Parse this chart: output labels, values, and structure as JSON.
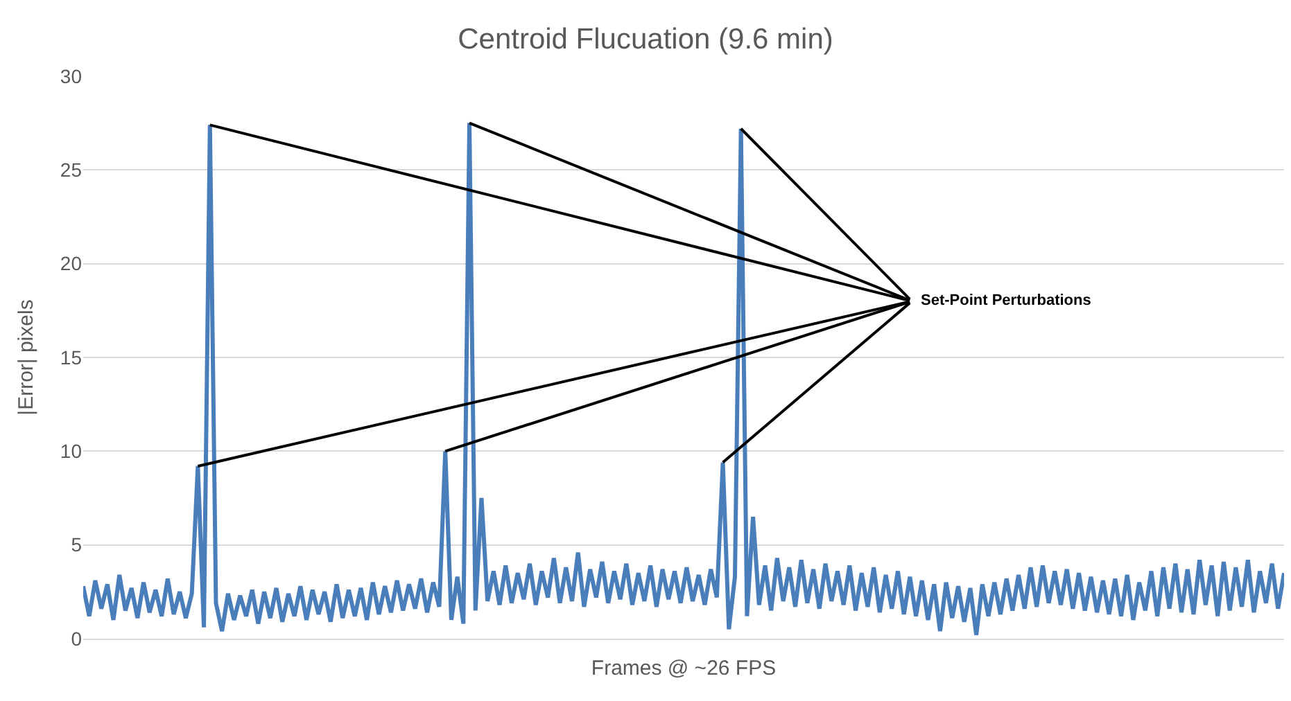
{
  "chart_data": {
    "type": "line",
    "title": "Centroid Flucuation (9.6 min)",
    "xlabel": "Frames @ ~26 FPS",
    "ylabel": "|Error| pixels",
    "categories": [
      null,
      null,
      null,
      null,
      null,
      null,
      null,
      null,
      null,
      null,
      null,
      null,
      null,
      null,
      null,
      null,
      null,
      null,
      null,
      null,
      null,
      null,
      null,
      null,
      null,
      null,
      null,
      null,
      null,
      null,
      null,
      null,
      null,
      null,
      null,
      null,
      null,
      null,
      null,
      null,
      null,
      null,
      null,
      null,
      null,
      null,
      null,
      null,
      null,
      null,
      null,
      null,
      null,
      null,
      null,
      null,
      null,
      null,
      null,
      null,
      null,
      null,
      null,
      null,
      null,
      null,
      null,
      null,
      null,
      null,
      null,
      null,
      null,
      null,
      null,
      null,
      null,
      null,
      null,
      null,
      null,
      null,
      null,
      null,
      null,
      null,
      null,
      null,
      null,
      null,
      null,
      null,
      null,
      null,
      null,
      null,
      null,
      null,
      null,
      null,
      null,
      null,
      null,
      null,
      null,
      null,
      null,
      null,
      null,
      null,
      null,
      null,
      null,
      null,
      null,
      null,
      null,
      null,
      null,
      null,
      null,
      null,
      null,
      null,
      null,
      null,
      null,
      null,
      null,
      null,
      null,
      null,
      null,
      null,
      null,
      null,
      null,
      null,
      null,
      null,
      null,
      null,
      null,
      null,
      null,
      null,
      null,
      null,
      null,
      null,
      null,
      null,
      null,
      null,
      null,
      null,
      null,
      null,
      null,
      null,
      null,
      null,
      null,
      null,
      null,
      null,
      null,
      null,
      null,
      null,
      null,
      null,
      null,
      null,
      null,
      null,
      null,
      null,
      null,
      null,
      null,
      null,
      null,
      null,
      null,
      null,
      null,
      null,
      null,
      null,
      null,
      null,
      null,
      null,
      null,
      null,
      null,
      null,
      null,
      null
    ],
    "series": [
      {
        "color": "#4a7ebb",
        "values": [
          2.8,
          1.2,
          3.1,
          1.6,
          2.9,
          1.0,
          3.4,
          1.5,
          2.7,
          1.1,
          3.0,
          1.4,
          2.6,
          1.2,
          3.2,
          1.3,
          2.5,
          1.1,
          2.4,
          9.2,
          0.6,
          27.4,
          1.9,
          0.4,
          2.4,
          1.0,
          2.3,
          1.2,
          2.6,
          0.8,
          2.5,
          1.1,
          2.7,
          0.9,
          2.4,
          1.2,
          2.8,
          1.0,
          2.6,
          1.3,
          2.5,
          0.9,
          2.9,
          1.1,
          2.6,
          1.2,
          2.7,
          1.0,
          3.0,
          1.3,
          2.8,
          1.4,
          3.1,
          1.5,
          2.9,
          1.6,
          3.2,
          1.4,
          3.0,
          1.7,
          10.0,
          1.0,
          3.3,
          0.8,
          27.5,
          1.5,
          7.5,
          2.0,
          3.6,
          1.8,
          3.9,
          1.9,
          3.5,
          2.1,
          4.0,
          1.8,
          3.6,
          2.2,
          4.3,
          1.9,
          3.8,
          2.0,
          4.6,
          1.7,
          3.7,
          2.2,
          4.1,
          1.9,
          3.6,
          2.1,
          4.0,
          1.8,
          3.5,
          2.0,
          3.9,
          1.7,
          3.7,
          2.1,
          3.6,
          1.9,
          3.8,
          2.0,
          3.4,
          1.8,
          3.7,
          2.2,
          9.4,
          0.5,
          3.3,
          27.2,
          1.2,
          6.5,
          1.8,
          3.9,
          1.5,
          4.3,
          2.0,
          3.8,
          1.7,
          4.2,
          1.9,
          3.7,
          1.6,
          4.0,
          2.0,
          3.6,
          1.8,
          3.9,
          1.5,
          3.5,
          1.7,
          3.8,
          1.4,
          3.4,
          1.6,
          3.6,
          1.3,
          3.3,
          1.2,
          3.1,
          1.0,
          2.9,
          0.4,
          3.0,
          1.1,
          2.8,
          0.9,
          2.7,
          0.2,
          2.9,
          1.2,
          3.0,
          1.3,
          3.2,
          1.5,
          3.4,
          1.6,
          3.8,
          1.7,
          3.9,
          1.9,
          3.6,
          1.8,
          3.7,
          1.6,
          3.5,
          1.5,
          3.3,
          1.4,
          3.1,
          1.3,
          3.2,
          1.2,
          3.4,
          1.0,
          3.0,
          1.5,
          3.6,
          1.2,
          3.8,
          1.6,
          4.0,
          1.4,
          3.7,
          1.3,
          4.2,
          1.8,
          3.9,
          1.2,
          4.1,
          1.5,
          3.8,
          1.7,
          4.2,
          1.4,
          3.6,
          1.9,
          4.0,
          1.6,
          3.5
        ]
      }
    ],
    "ylim": [
      0,
      30
    ],
    "yticks": [
      0,
      5,
      10,
      15,
      20,
      25,
      30
    ],
    "grid": "y",
    "legend": false,
    "marker": "none",
    "line_style": "solid",
    "annotations": [
      "Set-Point Perturbations"
    ]
  }
}
